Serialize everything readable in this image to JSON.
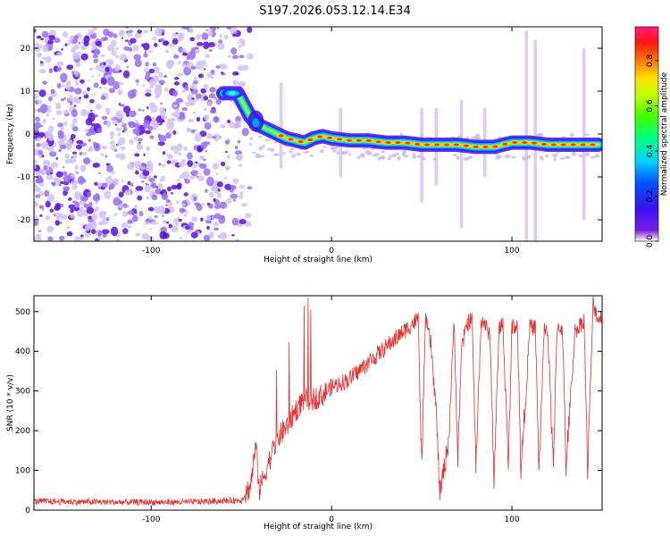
{
  "title": "S197.2026.053.12.14.E34",
  "colors": {
    "snr_line": "#e8312f",
    "axis": "#000000",
    "background": "#ffffff",
    "noise": "#6a0fe0"
  },
  "chart_data": [
    {
      "type": "heatmap",
      "title": "S197.2026.053.12.14.E34",
      "xlabel": "Height of straight line (km)",
      "ylabel": "Frequency (Hz)",
      "xlim": [
        -165,
        150
      ],
      "ylim": [
        -25,
        25
      ],
      "xticks": [
        -100,
        0,
        100
      ],
      "yticks": [
        -20,
        -10,
        0,
        10,
        20
      ],
      "colorbar": {
        "label": "Normalized spectral amplitude",
        "range": [
          0,
          0.95
        ],
        "ticks": [
          0.0,
          0.2,
          0.4,
          0.6,
          0.8
        ],
        "colormap": "rainbow"
      },
      "ridge": {
        "description": "dominant frequency track",
        "x": [
          -60,
          -52,
          -45,
          -40,
          -35,
          -30,
          -25,
          -20,
          -15,
          -10,
          -5,
          0,
          10,
          20,
          30,
          40,
          50,
          60,
          70,
          80,
          90,
          100,
          110,
          120,
          130,
          140,
          148
        ],
        "y": [
          9.5,
          9.5,
          4,
          2,
          1,
          0,
          -1,
          -1.5,
          -2,
          -1,
          -0.5,
          -1,
          -1.5,
          -1.5,
          -2,
          -2,
          -2.5,
          -2.5,
          -2.5,
          -3,
          -3,
          -2,
          -2,
          -2.5,
          -2.5,
          -2.5,
          -2.5
        ]
      },
      "noise_region": {
        "x_range": [
          -165,
          -45
        ]
      }
    },
    {
      "type": "line",
      "xlabel": "Height of straight line (km)",
      "ylabel": "SNR (10 * v/v)",
      "xlim": [
        -165,
        150
      ],
      "ylim": [
        0,
        540
      ],
      "xticks": [
        -100,
        0,
        100
      ],
      "yticks": [
        0,
        100,
        200,
        300,
        400,
        500
      ],
      "series": [
        {
          "name": "SNR",
          "x": [
            -165,
            -120,
            -80,
            -50,
            -45,
            -42,
            -40,
            -35,
            -30,
            -25,
            -20,
            -15,
            -10,
            -5,
            0,
            10,
            20,
            30,
            40,
            45,
            48,
            50,
            52,
            55,
            58,
            60,
            63,
            65,
            68,
            70,
            72,
            75,
            78,
            80,
            83,
            85,
            88,
            90,
            93,
            95,
            98,
            100,
            103,
            105,
            110,
            113,
            115,
            118,
            120,
            123,
            125,
            128,
            130,
            135,
            140,
            142,
            145,
            148,
            150
          ],
          "y": [
            22,
            20,
            20,
            25,
            60,
            160,
            50,
            120,
            180,
            210,
            250,
            280,
            280,
            290,
            310,
            330,
            370,
            410,
            450,
            470,
            480,
            110,
            480,
            420,
            250,
            40,
            120,
            180,
            480,
            120,
            400,
            470,
            480,
            110,
            480,
            470,
            430,
            80,
            460,
            470,
            110,
            460,
            470,
            100,
            460,
            460,
            100,
            470,
            440,
            100,
            460,
            460,
            110,
            450,
            480,
            100,
            520,
            480,
            490
          ]
        }
      ]
    }
  ]
}
